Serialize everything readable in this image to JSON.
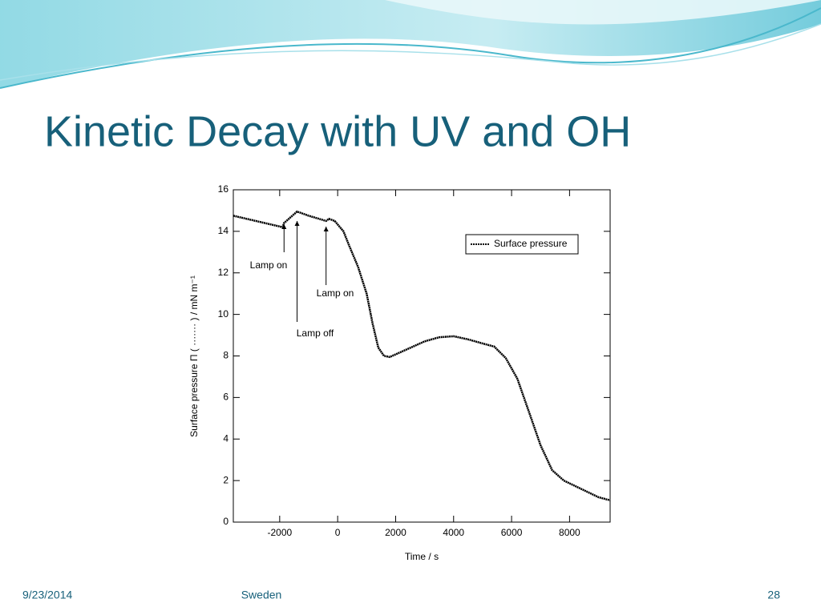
{
  "slide": {
    "title": "Kinetic Decay with UV and OH",
    "footer_date": "9/23/2014",
    "footer_center": "Sweden",
    "slide_number": "28"
  },
  "chart_data": {
    "type": "line",
    "x_label": "Time / s",
    "y_label": "Surface pressure Π ( ······· ) / mN m⁻¹",
    "x": [
      -3600,
      -1900,
      -1850,
      -1400,
      -1000,
      -400,
      -300,
      -100,
      200,
      400,
      700,
      1000,
      1200,
      1400,
      1600,
      1800,
      2200,
      2600,
      3000,
      3500,
      4000,
      4500,
      5000,
      5400,
      5800,
      6200,
      6600,
      7000,
      7400,
      7800,
      8400,
      9000,
      9400
    ],
    "series": [
      {
        "name": "Surface pressure",
        "color": "#000000",
        "values": [
          14.75,
          14.2,
          14.4,
          14.95,
          14.75,
          14.5,
          14.6,
          14.5,
          14.0,
          13.3,
          12.3,
          11.0,
          9.6,
          8.4,
          8.0,
          7.95,
          8.2,
          8.45,
          8.7,
          8.9,
          8.95,
          8.8,
          8.6,
          8.45,
          7.9,
          6.9,
          5.3,
          3.7,
          2.5,
          2.0,
          1.6,
          1.2,
          1.05
        ]
      }
    ],
    "annotations": [
      {
        "text": "Lamp on",
        "x": -1850
      },
      {
        "text": "Lamp off",
        "x": -1400
      },
      {
        "text": "Lamp on",
        "x": -400
      }
    ],
    "xlim": [
      -3600,
      9400
    ],
    "xticks": [
      -2000,
      0,
      2000,
      4000,
      6000,
      8000
    ],
    "ylim": [
      0,
      16
    ],
    "yticks": [
      0,
      2,
      4,
      6,
      8,
      10,
      12,
      14,
      16
    ],
    "legend": "upper right"
  }
}
